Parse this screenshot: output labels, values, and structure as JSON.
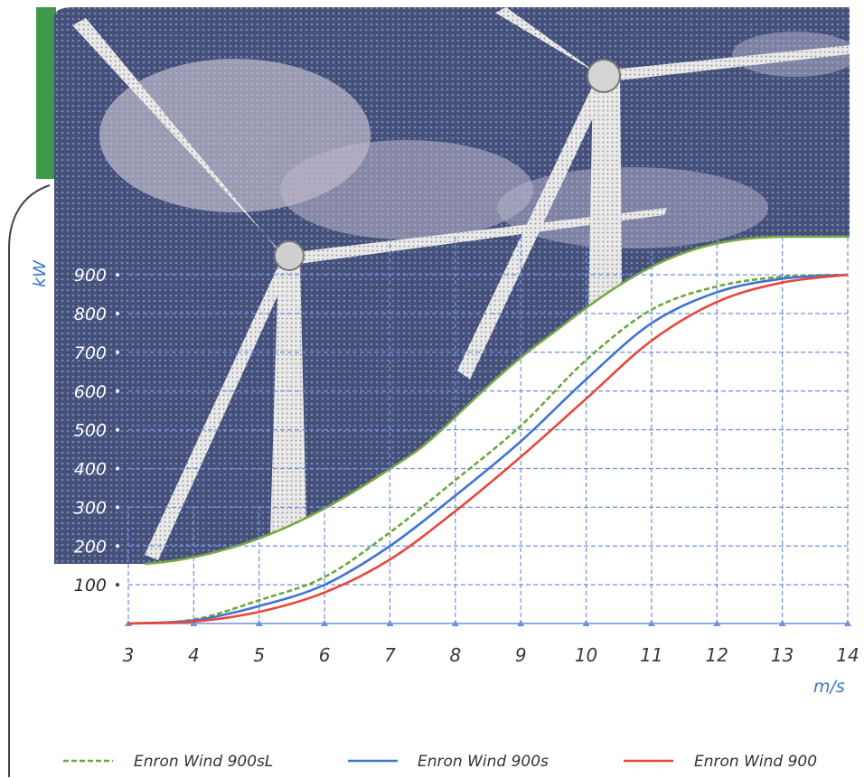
{
  "chart_data": {
    "type": "line",
    "xlabel": "m/s",
    "ylabel": "kW",
    "x": [
      3,
      4,
      5,
      6,
      7,
      8,
      9,
      10,
      11,
      12,
      13,
      14
    ],
    "xlim": [
      3,
      14
    ],
    "ylim": [
      0,
      1000
    ],
    "yticks": [
      100,
      200,
      300,
      400,
      500,
      600,
      700,
      800,
      900
    ],
    "grid": true,
    "legend_position": "bottom",
    "series": [
      {
        "name": "Enron Wind 900sL",
        "color": "#6aa83c",
        "values": [
          0,
          10,
          60,
          120,
          235,
          370,
          510,
          680,
          810,
          870,
          895,
          900
        ]
      },
      {
        "name": "Enron Wind 900s",
        "color": "#3f74d0",
        "values": [
          0,
          8,
          45,
          100,
          200,
          330,
          470,
          630,
          775,
          855,
          890,
          900
        ]
      },
      {
        "name": "Enron Wind 900",
        "color": "#e8473a",
        "values": [
          0,
          5,
          30,
          80,
          165,
          290,
          430,
          580,
          730,
          830,
          880,
          900
        ]
      }
    ]
  },
  "background": {
    "description_icon": "wind-turbine-photo"
  }
}
